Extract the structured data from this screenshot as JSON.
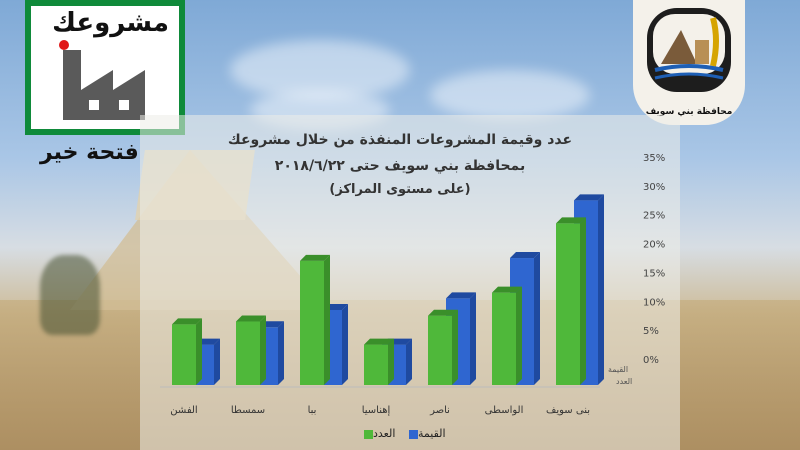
{
  "brand": {
    "logo_word": "مشروعك",
    "tagline": "فتحة خير",
    "emblem_caption": "محافظة بني سويف"
  },
  "colors": {
    "green": "#4fb83a",
    "blue": "#2f66d0",
    "logo_green": "#0f8a3a"
  },
  "chart_data": {
    "type": "bar",
    "title": "عدد وقيمة المشروعات المنفذة من خلال مشروعك",
    "subtitle": "بمحافظة بني سويف حتى ٢٠١٨/٦/٢٢",
    "subtitle2": "(على مستوى المراكز)",
    "categories": [
      "الفشن",
      "سمسطا",
      "ببا",
      "إهناسيا",
      "ناصر",
      "الواسطى",
      "بنى سويف"
    ],
    "series": [
      {
        "name": "العدد",
        "color": "#4fb83a",
        "values": [
          10.5,
          11,
          21.5,
          7,
          12,
          16,
          28
        ]
      },
      {
        "name": "القيمة",
        "color": "#2f66d0",
        "values": [
          7,
          10,
          13,
          7,
          15,
          22,
          32
        ]
      }
    ],
    "y_ticks": [
      "0%",
      "5%",
      "10%",
      "15%",
      "20%",
      "25%",
      "30%",
      "35%"
    ],
    "ylim": [
      0,
      35
    ],
    "axis_depth_labels": [
      "القيمة",
      "العدد"
    ],
    "grid": false,
    "legend_position": "bottom"
  }
}
